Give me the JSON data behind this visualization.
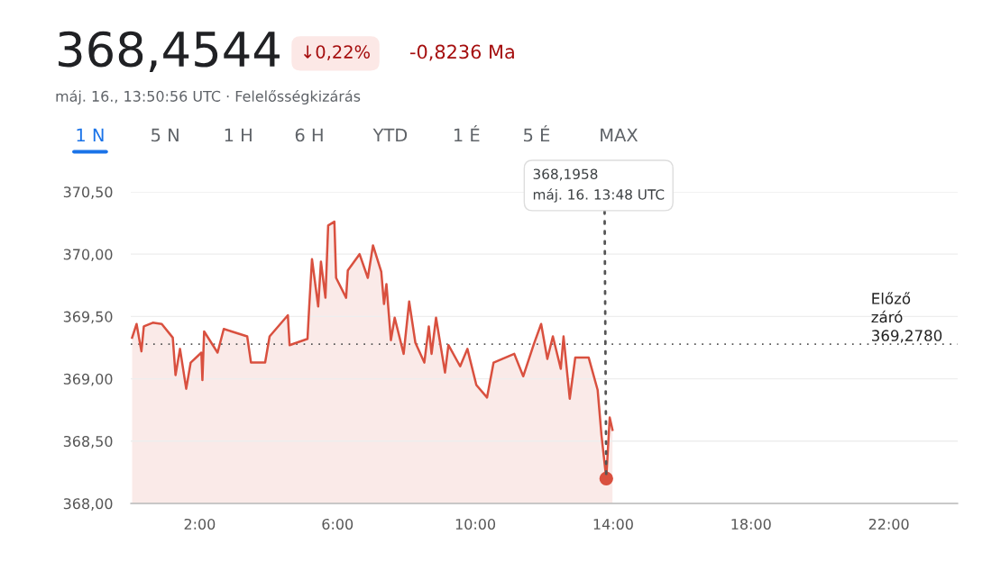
{
  "chart_data": {
    "type": "area",
    "title": "368,4544",
    "subtitle": "máj. 16., 13:50:56 UTC · Felelősségkizárás",
    "annotations": [
      "↓0,22%",
      "-0,8236 Ma",
      "1 N",
      "5 N",
      "1 H",
      "6 H",
      "YTD",
      "1 É",
      "5 É",
      "MAX",
      {
        "text": "368,1958\nmáj. 16. 13:48 UTC",
        "x": 13.8,
        "y": 368.2
      }
    ],
    "series": [
      {
        "color": "#d9503f",
        "x": [
          0.04,
          0.17,
          0.31,
          0.38,
          0.64,
          0.9,
          1.22,
          1.3,
          1.43,
          1.61,
          1.74,
          2.05,
          2.08,
          2.13,
          2.52,
          2.7,
          3.38,
          3.49,
          3.9,
          4.03,
          4.56,
          4.61,
          5.13,
          5.18,
          5.26,
          5.44,
          5.52,
          5.65,
          5.73,
          5.91,
          5.96,
          6.25,
          6.3,
          6.64,
          6.88,
          7.03,
          7.27,
          7.35,
          7.42,
          7.55,
          7.66,
          7.92,
          8.08,
          8.26,
          8.52,
          8.65,
          8.73,
          8.86,
          9.12,
          9.22,
          9.56,
          9.77,
          10.03,
          10.34,
          10.53,
          11.13,
          11.39,
          11.7,
          11.91,
          12.09,
          12.25,
          12.48,
          12.56,
          12.74,
          12.9,
          13.29,
          13.55,
          13.66,
          13.8,
          13.9,
          13.98
        ],
        "values": [
          369.33,
          369.44,
          369.22,
          369.42,
          369.45,
          369.44,
          369.33,
          369.03,
          369.24,
          368.92,
          369.13,
          369.21,
          368.99,
          369.38,
          369.21,
          369.4,
          369.34,
          369.13,
          369.13,
          369.34,
          369.51,
          369.27,
          369.32,
          369.58,
          369.96,
          369.58,
          369.94,
          369.65,
          370.23,
          370.26,
          369.81,
          369.65,
          369.87,
          370.0,
          369.81,
          370.07,
          369.86,
          369.6,
          369.76,
          369.31,
          369.49,
          369.2,
          369.62,
          369.29,
          369.13,
          369.42,
          369.2,
          369.49,
          369.05,
          369.27,
          369.1,
          369.24,
          368.95,
          368.85,
          369.13,
          369.2,
          369.02,
          369.28,
          369.44,
          369.16,
          369.34,
          369.08,
          369.34,
          368.84,
          369.17,
          369.17,
          368.91,
          368.55,
          368.2,
          368.69,
          368.59
        ]
      }
    ],
    "xlim": [
      0,
      24
    ],
    "ylim": [
      368,
      370.5
    ],
    "xticks": [
      {
        "value": 2,
        "label": "2:00"
      },
      {
        "value": 6,
        "label": "6:00"
      },
      {
        "value": 10,
        "label": "10:00"
      },
      {
        "value": 14,
        "label": "14:00"
      },
      {
        "value": 18,
        "label": "18:00"
      },
      {
        "value": 22,
        "label": "22:00"
      }
    ],
    "yticks": [
      {
        "value": 368,
        "label": "368,00"
      },
      {
        "value": 368.5,
        "label": "368,50"
      },
      {
        "value": 369,
        "label": "369,00"
      },
      {
        "value": 369.5,
        "label": "369,50"
      },
      {
        "value": 370,
        "label": "370,00"
      },
      {
        "value": 370.5,
        "label": "370,50"
      }
    ],
    "ref_lines": [
      {
        "axis": "y",
        "value": 369.278,
        "label": "Előző\nzáró\n369,2780",
        "color": "#555555",
        "line_style": "dotted"
      }
    ],
    "grid": "y"
  }
}
